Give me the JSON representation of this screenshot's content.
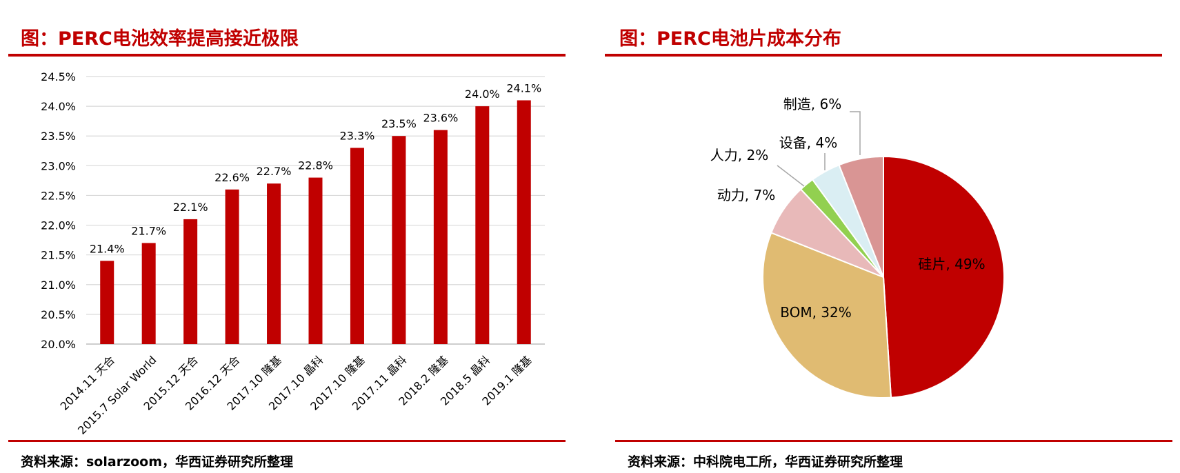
{
  "left_panel": {
    "title": "图：PERC电池效率提高接近极限",
    "source": "资料来源：solarzoom，华西证券研究所整理"
  },
  "right_panel": {
    "title": "图：PERC电池片成本分布",
    "source": "资料来源：中科院电工所，华西证券研究所整理"
  },
  "colors": {
    "accent": "#c00000",
    "bar": "#c00000"
  },
  "chart_data": [
    {
      "type": "bar",
      "title": "",
      "xlabel": "",
      "ylabel": "",
      "categories": [
        "2014.11 天合",
        "2015.7 Solar World",
        "2015.12 天合",
        "2016.12 天合",
        "2017.10 隆基",
        "2017.10 晶科",
        "2017.10 隆基",
        "2017.11 晶科",
        "2018.2 隆基",
        "2018.5 晶科",
        "2019.1 隆基"
      ],
      "values": [
        21.4,
        21.7,
        22.1,
        22.6,
        22.7,
        22.8,
        23.3,
        23.5,
        23.6,
        24.0,
        24.1
      ],
      "data_labels": [
        "21.4%",
        "21.7%",
        "22.1%",
        "22.6%",
        "22.7%",
        "22.8%",
        "23.3%",
        "23.5%",
        "23.6%",
        "24.0%",
        "24.1%"
      ],
      "ylim": [
        20.0,
        24.5
      ],
      "yticks": [
        20.0,
        20.5,
        21.0,
        21.5,
        22.0,
        22.5,
        23.0,
        23.5,
        24.0,
        24.5
      ],
      "ytick_labels": [
        "20.0%",
        "20.5%",
        "21.0%",
        "21.5%",
        "22.0%",
        "22.5%",
        "23.0%",
        "23.5%",
        "24.0%",
        "24.5%"
      ],
      "grid": true,
      "legend": "none"
    },
    {
      "type": "pie",
      "title": "",
      "slices": [
        {
          "label": "硅片, 49%",
          "value": 49,
          "color": "#c00000"
        },
        {
          "label": "BOM, 32%",
          "value": 32,
          "color": "#e0bb72"
        },
        {
          "label": "动力, 7%",
          "value": 7,
          "color": "#e8b9b9"
        },
        {
          "label": "人力, 2%",
          "value": 2,
          "color": "#92d050"
        },
        {
          "label": "设备, 4%",
          "value": 4,
          "color": "#daeef3"
        },
        {
          "label": "制造, 6%",
          "value": 6,
          "color": "#d99594"
        }
      ],
      "legend": "none"
    }
  ]
}
